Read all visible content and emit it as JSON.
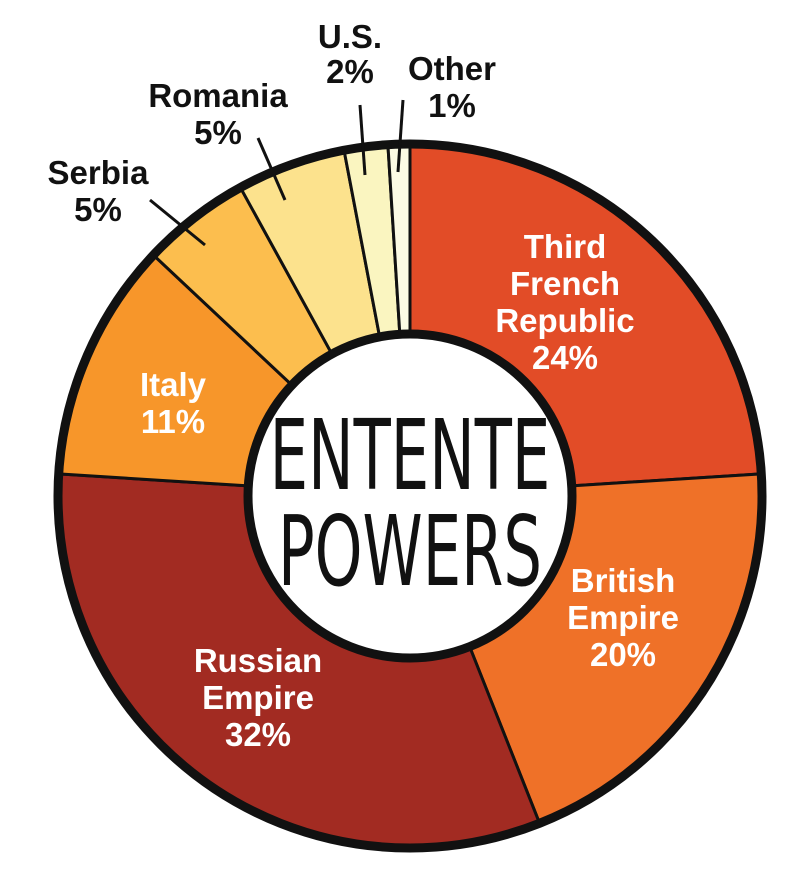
{
  "chart_data": {
    "type": "pie",
    "variant": "donut",
    "title": "",
    "center_label": [
      "ENTENTE",
      "POWERS"
    ],
    "slices": [
      {
        "name": "Third French Republic",
        "label_lines": [
          "Third",
          "French",
          "Republic"
        ],
        "percent_label": "24%",
        "value": 24,
        "color": "#e24c27",
        "label_side": "inside"
      },
      {
        "name": "British Empire",
        "label_lines": [
          "British",
          "Empire"
        ],
        "percent_label": "20%",
        "value": 20,
        "color": "#ef7128",
        "label_side": "inside"
      },
      {
        "name": "Russian Empire",
        "label_lines": [
          "Russian",
          "Empire"
        ],
        "percent_label": "32%",
        "value": 32,
        "color": "#a22b22",
        "label_side": "inside"
      },
      {
        "name": "Italy",
        "label_lines": [
          "Italy"
        ],
        "percent_label": "11%",
        "value": 11,
        "color": "#f7962a",
        "label_side": "inside"
      },
      {
        "name": "Serbia",
        "label_lines": [
          "Serbia"
        ],
        "percent_label": "5%",
        "value": 5,
        "color": "#fcbe4e",
        "label_side": "outside"
      },
      {
        "name": "Romania",
        "label_lines": [
          "Romania"
        ],
        "percent_label": "5%",
        "value": 5,
        "color": "#fce28d",
        "label_side": "outside"
      },
      {
        "name": "U.S.",
        "label_lines": [
          "U.S."
        ],
        "percent_label": "2%",
        "value": 2,
        "color": "#faf5c0",
        "label_side": "outside"
      },
      {
        "name": "Other",
        "label_lines": [
          "Other"
        ],
        "percent_label": "1%",
        "value": 1,
        "color": "#fcfbe4",
        "label_side": "outside"
      }
    ]
  }
}
